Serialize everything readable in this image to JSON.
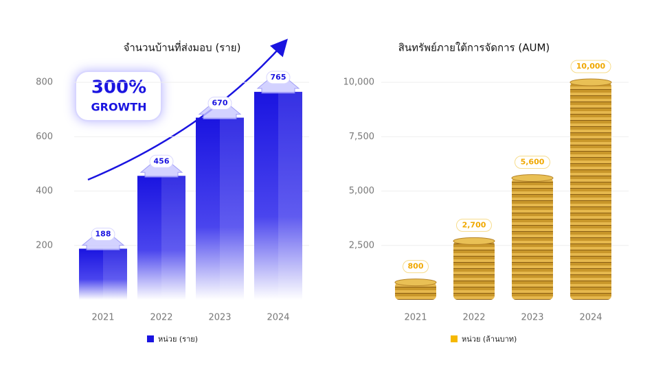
{
  "chart_data": [
    {
      "type": "bar",
      "title": "จำนวนบ้านที่ส่งมอบ (ราย)",
      "categories": [
        "2021",
        "2022",
        "2023",
        "2024"
      ],
      "values": [
        188,
        456,
        670,
        765
      ],
      "color": "#1a14e0",
      "ylim": [
        0,
        800
      ],
      "yticks": [
        200,
        400,
        600,
        800
      ],
      "grid": true,
      "annotation": [
        "300%",
        "GROWTH"
      ],
      "legend": "หน่วย (ราย)"
    },
    {
      "type": "coins",
      "title": "สินทรัพย์ภายใต้การจัดการ (AUM)",
      "categories": [
        "2021",
        "2022",
        "2023",
        "2024"
      ],
      "values": [
        800,
        2700,
        5600,
        10000
      ],
      "value_labels": [
        "800",
        "2,700",
        "5,600",
        "10,000"
      ],
      "color": "#f5b800",
      "ylim": [
        0,
        10000
      ],
      "yticks": [
        {
          "value": 2500,
          "label": "2,500"
        },
        {
          "value": 5000,
          "label": "5,000"
        },
        {
          "value": 7500,
          "label": "7,500"
        },
        {
          "value": 10000,
          "label": "10,000"
        }
      ],
      "grid": true,
      "legend": "หน่วย (ล้านบาท)"
    }
  ]
}
